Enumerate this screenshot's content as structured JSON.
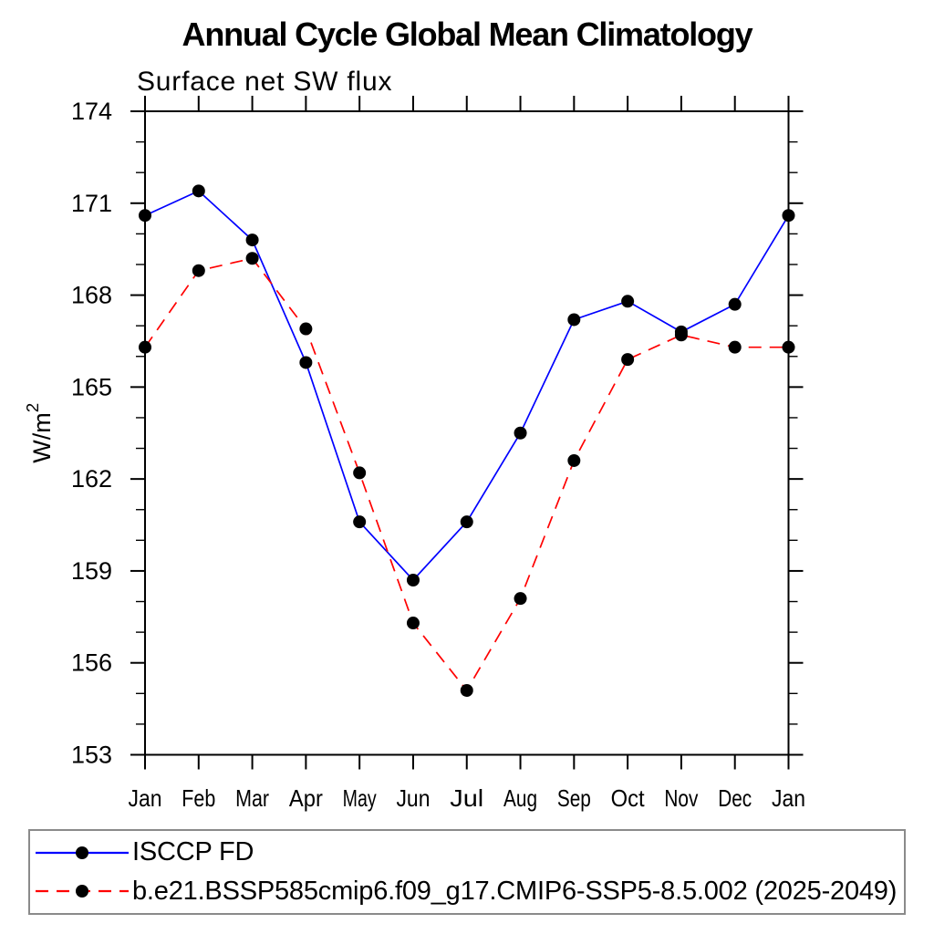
{
  "header": {
    "title": "Annual Cycle Global Mean Climatology",
    "subtitle": "Surface net SW flux"
  },
  "chart_data": {
    "type": "line",
    "title": "Annual Cycle Global Mean Climatology",
    "subtitle": "Surface net SW flux",
    "xlabel": "",
    "ylabel": "W/m²",
    "categories": [
      "Jan",
      "Feb",
      "Mar",
      "Apr",
      "May",
      "Jun",
      "Jul",
      "Aug",
      "Sep",
      "Oct",
      "Nov",
      "Dec",
      "Jan"
    ],
    "ylim": [
      153,
      174
    ],
    "yticks_major": [
      153,
      156,
      159,
      162,
      165,
      168,
      171,
      174
    ],
    "ytick_minor_step": 1,
    "grid": false,
    "legend_position": "bottom-left-box",
    "axis_color": "#000000",
    "marker_color": "#000000",
    "series": [
      {
        "name": "ISCCP FD",
        "color": "#0000ff",
        "line_style": "solid",
        "marker": "filled-circle",
        "values": [
          170.6,
          171.4,
          169.8,
          165.8,
          160.6,
          158.7,
          160.6,
          163.5,
          167.2,
          167.8,
          166.8,
          167.7,
          170.6
        ]
      },
      {
        "name": "b.e21.BSSP585cmip6.f09_g17.CMIP6-SSP5-8.5.002 (2025-2049)",
        "color": "#ff0000",
        "line_style": "dashed",
        "marker": "filled-circle",
        "values": [
          166.3,
          168.8,
          169.2,
          166.9,
          162.2,
          157.3,
          155.1,
          158.1,
          162.6,
          165.9,
          166.7,
          166.3,
          166.3
        ]
      }
    ]
  }
}
